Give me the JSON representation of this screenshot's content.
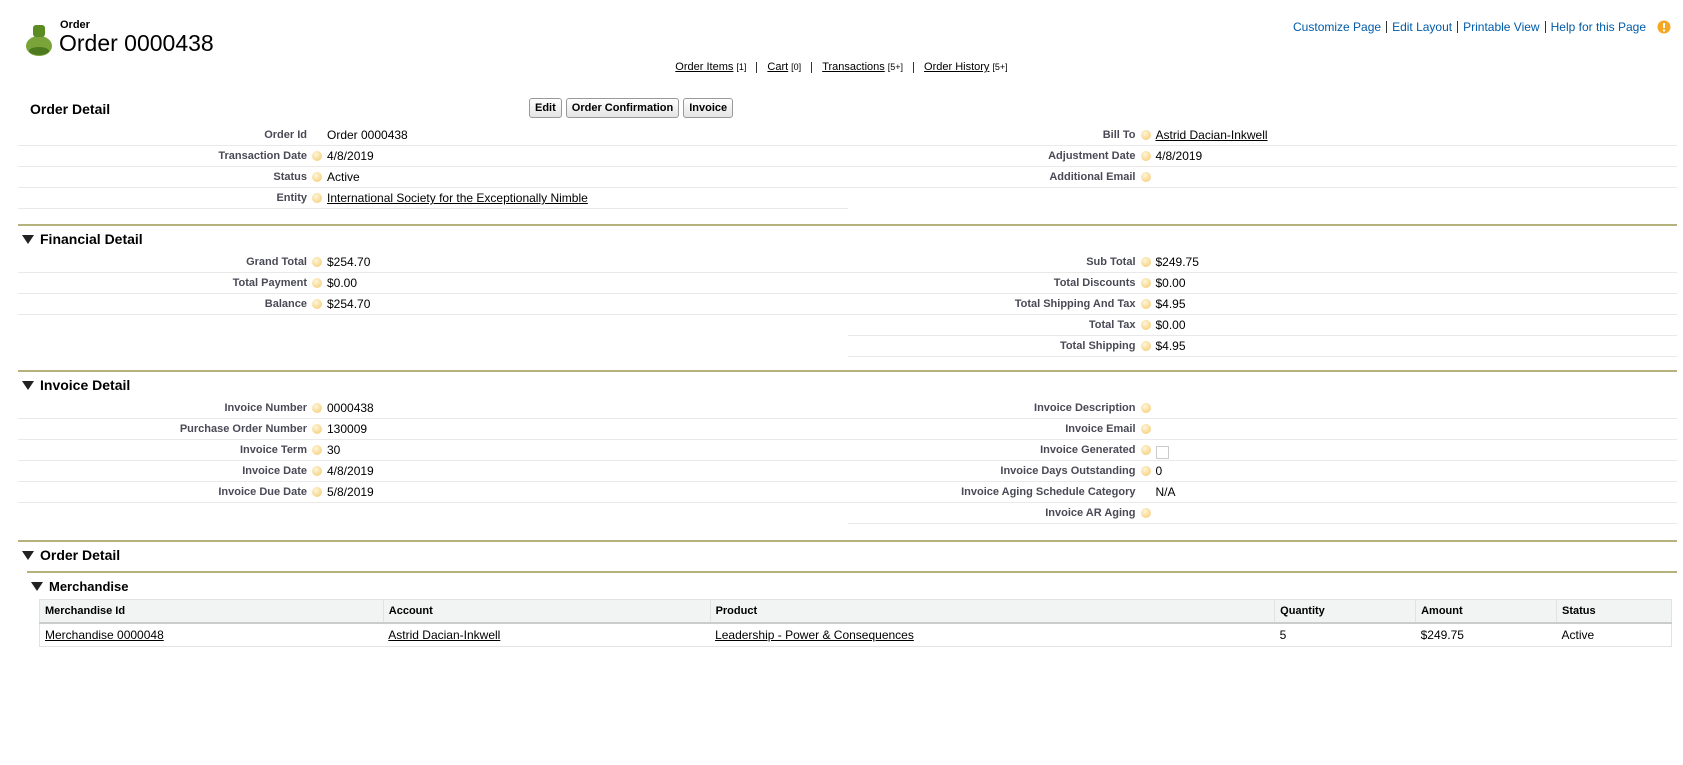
{
  "header": {
    "object": "Order",
    "title": "Order 0000438",
    "links": [
      "Customize Page",
      "Edit Layout",
      "Printable View",
      "Help for this Page"
    ]
  },
  "related_lists": [
    {
      "label": "Order Items",
      "count": "[1]"
    },
    {
      "label": "Cart",
      "count": "[0]"
    },
    {
      "label": "Transactions",
      "count": "[5+]"
    },
    {
      "label": "Order History",
      "count": "[5+]"
    }
  ],
  "order_detail": {
    "title": "Order Detail",
    "buttons": [
      "Edit",
      "Order Confirmation",
      "Invoice"
    ],
    "left": [
      {
        "label": "Order Id",
        "value": "Order 0000438",
        "help": false
      },
      {
        "label": "Transaction Date",
        "value": "4/8/2019"
      },
      {
        "label": "Status",
        "value": "Active"
      },
      {
        "label": "Entity",
        "value": "International Society for the Exceptionally Nimble",
        "link": true
      }
    ],
    "right": [
      {
        "label": "Bill To",
        "value": "Astrid Dacian-Inkwell",
        "link": true
      },
      {
        "label": "Adjustment Date",
        "value": "4/8/2019"
      },
      {
        "label": "Additional Email"
      }
    ]
  },
  "sections": [
    {
      "title": "Financial Detail",
      "left": [
        {
          "label": "Grand Total",
          "value": "$254.70"
        },
        {
          "label": "Total Payment",
          "value": "$0.00"
        },
        {
          "label": "Balance",
          "value": "$254.70"
        }
      ],
      "right": [
        {
          "label": "Sub Total",
          "value": "$249.75"
        },
        {
          "label": "Total Discounts",
          "value": "$0.00"
        },
        {
          "label": "Total Shipping And Tax",
          "value": "$4.95"
        },
        {
          "label": "Total Tax",
          "value": "$0.00"
        },
        {
          "label": "Total Shipping",
          "value": "$4.95"
        }
      ]
    },
    {
      "title": "Invoice Detail",
      "left": [
        {
          "label": "Invoice Number",
          "value": "0000438"
        },
        {
          "label": "Purchase Order Number",
          "value": "130009"
        },
        {
          "label": "Invoice Term",
          "value": "30"
        },
        {
          "label": "Invoice Date",
          "value": "4/8/2019"
        },
        {
          "label": "Invoice Due Date",
          "value": "5/8/2019"
        }
      ],
      "right": [
        {
          "label": "Invoice Description"
        },
        {
          "label": "Invoice Email"
        },
        {
          "label": "Invoice Generated",
          "checkbox": false
        },
        {
          "label": "Invoice Days Outstanding",
          "value": "0"
        },
        {
          "label": "Invoice Aging Schedule Category",
          "value": "N/A",
          "help": false
        },
        {
          "label": "Invoice AR Aging"
        }
      ]
    }
  ],
  "order_items": {
    "title": "Order Detail",
    "merchandise": {
      "title": "Merchandise",
      "columns": [
        {
          "label": "Merchandise Id",
          "link": true
        },
        {
          "label": "Account",
          "link": true
        },
        {
          "label": "Product",
          "link": true
        },
        {
          "label": "Quantity"
        },
        {
          "label": "Amount"
        },
        {
          "label": "Status"
        }
      ],
      "rows": [
        [
          "Merchandise 0000048",
          "Astrid Dacian-Inkwell",
          "Leadership - Power & Consequences",
          "5",
          "$249.75",
          "Active"
        ]
      ]
    }
  }
}
